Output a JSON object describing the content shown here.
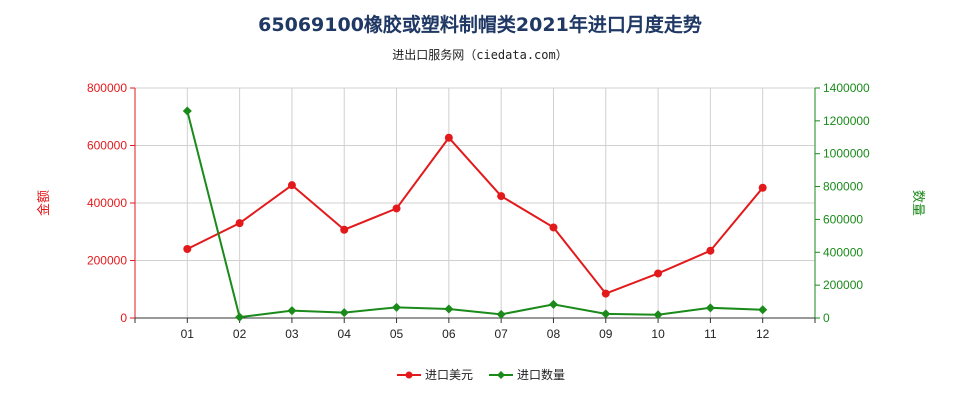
{
  "chart_data": {
    "type": "line",
    "title": "65069100橡胶或塑料制帽类2021年进口月度走势",
    "subtitle": "进出口服务网（ciedata.com）",
    "categories": [
      "01",
      "02",
      "03",
      "04",
      "05",
      "06",
      "07",
      "08",
      "09",
      "10",
      "11",
      "12"
    ],
    "left_axis": {
      "label": "金额",
      "ylim": [
        0,
        800000
      ],
      "ticks": [
        "0",
        "200000",
        "400000",
        "600000",
        "800000"
      ],
      "color": "#e31a1c"
    },
    "right_axis": {
      "label": "数量",
      "ylim": [
        0,
        1400000
      ],
      "ticks": [
        "0",
        "200000",
        "400000",
        "600000",
        "800000",
        "1000000",
        "1200000",
        "1400000"
      ],
      "color": "#1a8a1a"
    },
    "series": [
      {
        "name": "进口美元",
        "axis": "left",
        "color": "#e31a1c",
        "marker": "circle",
        "values": [
          240000,
          330000,
          462000,
          307000,
          381000,
          627000,
          424000,
          315000,
          85000,
          155000,
          234000,
          453000
        ]
      },
      {
        "name": "进口数量",
        "axis": "right",
        "color": "#1a8a1a",
        "marker": "diamond",
        "values": [
          1260000,
          5000,
          45000,
          33000,
          65000,
          55000,
          22000,
          83000,
          25000,
          20000,
          62000,
          50000
        ]
      }
    ],
    "grid": true,
    "legend_position": "bottom-center"
  }
}
